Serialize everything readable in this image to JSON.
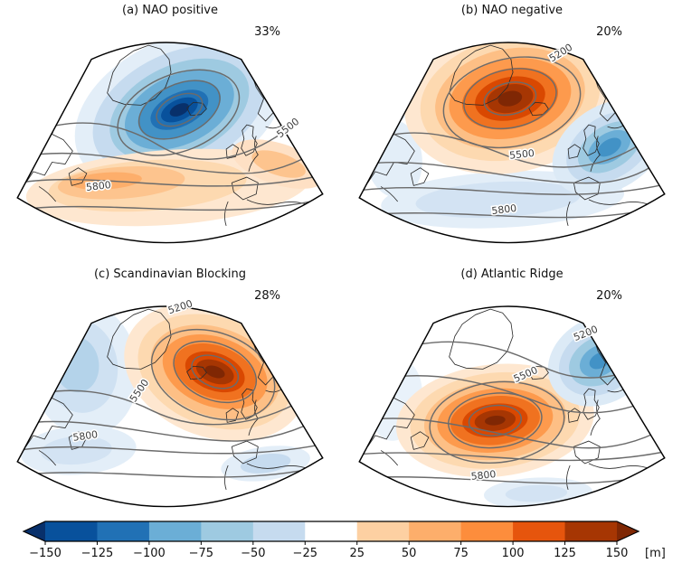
{
  "panels": [
    {
      "id": "a",
      "title": "(a) NAO positive",
      "frequency": "33%",
      "contour_labels": [
        {
          "text": "5500"
        },
        {
          "text": "5800"
        }
      ]
    },
    {
      "id": "b",
      "title": "(b) NAO negative",
      "frequency": "20%",
      "contour_labels": [
        {
          "text": "5200"
        },
        {
          "text": "5500"
        },
        {
          "text": "5800"
        }
      ]
    },
    {
      "id": "c",
      "title": "(c) Scandinavian Blocking",
      "frequency": "28%",
      "contour_labels": [
        {
          "text": "5200"
        },
        {
          "text": "5500"
        },
        {
          "text": "5800"
        }
      ]
    },
    {
      "id": "d",
      "title": "(d) Atlantic Ridge",
      "frequency": "20%",
      "contour_labels": [
        {
          "text": "5200"
        },
        {
          "text": "5500"
        },
        {
          "text": "5800"
        }
      ]
    }
  ],
  "colorbar": {
    "ticks": [
      "−150",
      "−125",
      "−100",
      "−75",
      "−50",
      "−25",
      "25",
      "50",
      "75",
      "100",
      "125",
      "150"
    ],
    "unit": "[m]",
    "segment_colors": [
      "#08519c",
      "#2171b5",
      "#6baed6",
      "#9ecae1",
      "#c6dbef",
      "#ffffff",
      "#fdd0a2",
      "#fdae6b",
      "#fd8d3c",
      "#e6550d",
      "#a63603"
    ],
    "arrow_left_color": "#08306b",
    "arrow_right_color": "#7f2704"
  },
  "chart_data": {
    "type": "heatmap",
    "subtype": "filled-contour-anomaly-maps",
    "panels": [
      {
        "label": "(a) NAO positive",
        "frequency_percent": 33,
        "anomalies": [
          {
            "sign": "negative",
            "center_region": "Iceland / subpolar North Atlantic",
            "peak_estimate_m": -150
          },
          {
            "sign": "positive",
            "center_region": "mid-latitude Atlantic and southern Europe",
            "peak_estimate_m": 75
          }
        ],
        "contour_line_labels_m": [
          5500,
          5800
        ]
      },
      {
        "label": "(b) NAO negative",
        "frequency_percent": 20,
        "anomalies": [
          {
            "sign": "positive",
            "center_region": "Greenland / Iceland",
            "peak_estimate_m": 150
          },
          {
            "sign": "negative",
            "center_region": "western Europe and mid-latitude Atlantic",
            "peak_estimate_m": -100
          }
        ],
        "contour_line_labels_m": [
          5200,
          5500,
          5800
        ]
      },
      {
        "label": "(c) Scandinavian Blocking",
        "frequency_percent": 28,
        "anomalies": [
          {
            "sign": "positive",
            "center_region": "Scandinavia / North Sea",
            "peak_estimate_m": 150
          },
          {
            "sign": "negative",
            "center_region": "northwest Atlantic and subtropical Atlantic",
            "peak_estimate_m": -50
          }
        ],
        "contour_line_labels_m": [
          5200,
          5500,
          5800
        ]
      },
      {
        "label": "(d) Atlantic Ridge",
        "frequency_percent": 20,
        "anomalies": [
          {
            "sign": "positive",
            "center_region": "central North Atlantic",
            "peak_estimate_m": 150
          },
          {
            "sign": "negative",
            "center_region": "Scandinavia / Norwegian Sea",
            "peak_estimate_m": -75
          }
        ],
        "contour_line_labels_m": [
          5200,
          5500,
          5800
        ]
      }
    ],
    "colorbar": {
      "min": -150,
      "max": 150,
      "interval": 25,
      "unit": "m",
      "tick_values": [
        -150,
        -125,
        -100,
        -75,
        -50,
        -25,
        25,
        50,
        75,
        100,
        125,
        150
      ]
    }
  }
}
